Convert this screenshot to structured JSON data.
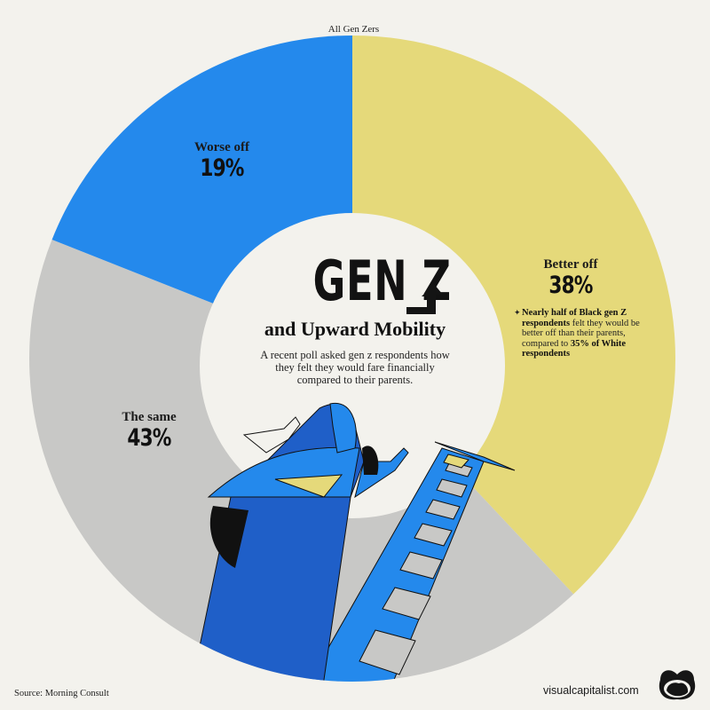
{
  "chart_data": {
    "type": "pie",
    "subtype": "donut",
    "title": "GEN Z and Upward Mobility",
    "subtitle": "A recent poll asked gen z respondents how they felt they would fare financially compared to their parents.",
    "group_label": "All Gen Zers",
    "categories": [
      "Better off",
      "The same",
      "Worse off"
    ],
    "values": [
      38,
      43,
      19
    ],
    "unit": "%",
    "colors": [
      "#e5d97a",
      "#c8c8c6",
      "#2489ec"
    ],
    "start_angle_deg": 0,
    "direction": "clockwise",
    "annotations": [
      "Nearly half of Black gen Z respondents felt they would be better off than their parents, compared to 35% of White respondents"
    ],
    "source": "Source: Morning Consult"
  },
  "header": {
    "group_label": "All Gen Zers"
  },
  "title": {
    "main": "GEN Z",
    "sub": "and Upward Mobility",
    "description_lines": [
      "A recent poll asked gen z respondents how",
      "they felt they would fare financially",
      "compared to their parents."
    ]
  },
  "slices": [
    {
      "name": "Better off",
      "pct": "38%",
      "color": "#e5d97a"
    },
    {
      "name": "The same",
      "pct": "43%",
      "color": "#c8c8c6"
    },
    {
      "name": "Worse off",
      "pct": "19%",
      "color": "#2489ec"
    }
  ],
  "note": {
    "bullet": "✦",
    "bold1": "Nearly half of Black gen Z respondents",
    "text1": " felt they would be better off than their parents, compared to ",
    "bold2": "35% of White respondents"
  },
  "footer": {
    "source": "Source: Morning Consult",
    "brand": "visualcapitalist.com"
  },
  "icons": {
    "arrow": "up-right-arrow-icon",
    "logo": "visual-capitalist-logo-icon",
    "illustration": "person-climbing-ladder-illustration"
  }
}
